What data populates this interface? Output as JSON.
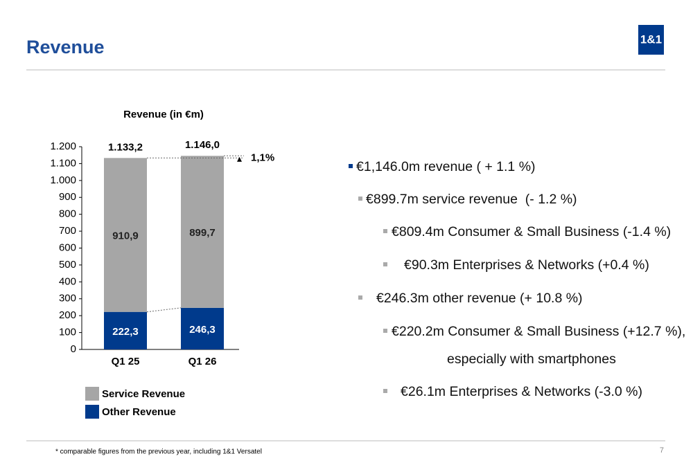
{
  "header": {
    "title": "Revenue",
    "logo": "1&1"
  },
  "chart_data": {
    "type": "bar",
    "stacked": true,
    "title": "Revenue (in €m)",
    "categories": [
      "Q1 25",
      "Q1 26"
    ],
    "series": [
      {
        "name": "Service Revenue",
        "color": "#a6a6a6",
        "values": [
          910.9,
          899.7
        ],
        "value_labels": [
          "910,9",
          "899,7"
        ]
      },
      {
        "name": "Other Revenue",
        "color": "#003a8c",
        "values": [
          222.3,
          246.3
        ],
        "value_labels": [
          "222,3",
          "246,3"
        ]
      }
    ],
    "totals": [
      1133.2,
      1146.0
    ],
    "total_labels": [
      "1.133,2",
      "1.146,0"
    ],
    "annotation": "1,1%",
    "ylim": [
      0,
      1200
    ],
    "yticks": [
      0,
      100,
      200,
      300,
      400,
      500,
      600,
      700,
      800,
      900,
      {
        "value": 1000,
        "label": "1.000"
      },
      {
        "value": 1100,
        "label": "1.100"
      },
      {
        "value": 1200,
        "label": "1.200"
      }
    ],
    "grid": false,
    "legend": "bottom-left"
  },
  "bullets": [
    {
      "text": "€1,146.0m revenue ( + 1.1 %)"
    },
    {
      "text": "€899.7m service revenue  (- 1.2 %)"
    },
    {
      "text": "€809.4m Consumer & Small Business (-1.4 %)"
    },
    {
      "text": "€90.3m Enterprises & Networks (+0.4 %)"
    },
    {
      "text": "€246.3m other revenue (+ 10.8 %)"
    },
    {
      "text": "€220.2m Consumer & Small Business (+12.7 %),",
      "continuation": "especially with smartphones"
    },
    {
      "text": "€26.1m Enterprises & Networks (-3.0 %)"
    }
  ],
  "footer": {
    "note": "* comparable figures from the previous year, including 1&1 Versatel",
    "page": "7"
  }
}
